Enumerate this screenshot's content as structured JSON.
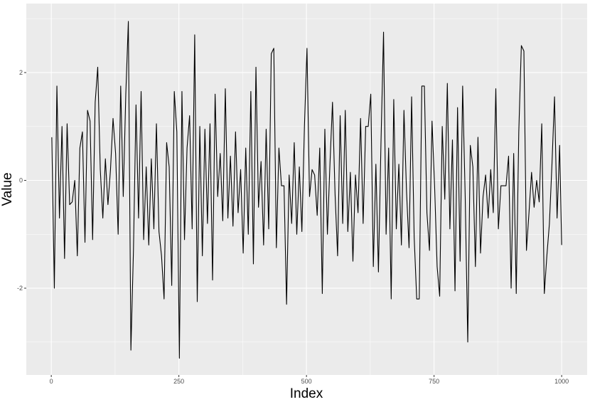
{
  "chart_data": {
    "type": "line",
    "xlabel": "Index",
    "ylabel": "Value",
    "xlim": [
      -48.95,
      1049.95
    ],
    "ylim": [
      -3.61,
      3.28
    ],
    "xticks": [
      0,
      250,
      500,
      750,
      1000
    ],
    "yticks": [
      -2,
      0,
      2
    ],
    "xminor": [
      125,
      375,
      625,
      875
    ],
    "yminor": [
      -3,
      -1,
      1,
      3
    ],
    "grid": true,
    "x": [
      1,
      6,
      11,
      16,
      21,
      26,
      31,
      36,
      41,
      46,
      51,
      56,
      61,
      66,
      71,
      76,
      81,
      86,
      91,
      96,
      101,
      106,
      111,
      116,
      121,
      126,
      131,
      136,
      141,
      146,
      151,
      156,
      161,
      166,
      171,
      176,
      181,
      186,
      191,
      196,
      201,
      206,
      211,
      216,
      221,
      226,
      231,
      236,
      241,
      246,
      251,
      256,
      261,
      266,
      271,
      276,
      281,
      286,
      291,
      296,
      301,
      306,
      311,
      316,
      321,
      326,
      331,
      336,
      341,
      346,
      351,
      356,
      361,
      366,
      371,
      376,
      381,
      386,
      391,
      396,
      401,
      406,
      411,
      416,
      421,
      426,
      431,
      436,
      441,
      446,
      451,
      456,
      461,
      466,
      471,
      476,
      481,
      486,
      491,
      496,
      501,
      506,
      511,
      516,
      521,
      526,
      531,
      536,
      541,
      546,
      551,
      556,
      561,
      566,
      571,
      576,
      581,
      586,
      591,
      596,
      601,
      606,
      611,
      616,
      621,
      626,
      631,
      636,
      641,
      646,
      651,
      656,
      661,
      666,
      671,
      676,
      681,
      686,
      691,
      696,
      701,
      706,
      711,
      716,
      721,
      726,
      731,
      736,
      741,
      746,
      751,
      756,
      761,
      766,
      771,
      776,
      781,
      786,
      791,
      796,
      801,
      806,
      811,
      816,
      821,
      826,
      831,
      836,
      841,
      846,
      851,
      856,
      861,
      866,
      871,
      876,
      881,
      886,
      891,
      896,
      901,
      906,
      911,
      916,
      921,
      926,
      931,
      936,
      941,
      946,
      951,
      956,
      961,
      966,
      971,
      976,
      981,
      986,
      991,
      996,
      1000
    ],
    "series": [
      {
        "color": "#000000",
        "values": [
          0.8,
          -2.0,
          1.75,
          -0.7,
          1.0,
          -1.45,
          1.05,
          -0.45,
          -0.4,
          0.0,
          -1.4,
          0.6,
          0.9,
          -1.15,
          1.3,
          1.1,
          -1.1,
          1.45,
          2.1,
          0.2,
          -0.7,
          0.4,
          -0.45,
          0.2,
          1.15,
          0.5,
          -1.0,
          1.75,
          -0.3,
          1.6,
          2.95,
          -3.15,
          -1.3,
          1.4,
          -0.7,
          1.65,
          -1.1,
          0.25,
          -1.2,
          0.4,
          -0.9,
          1.05,
          -0.95,
          -1.4,
          -2.2,
          0.7,
          0.25,
          -1.95,
          1.65,
          0.9,
          -3.3,
          1.65,
          -1.1,
          0.6,
          1.2,
          -0.9,
          2.7,
          -2.25,
          1.0,
          -1.4,
          0.95,
          -0.8,
          1.05,
          -1.85,
          1.6,
          -0.3,
          0.5,
          -0.75,
          1.7,
          -0.7,
          0.45,
          -0.85,
          0.9,
          -0.6,
          0.2,
          -1.35,
          0.6,
          -1.0,
          1.65,
          -1.55,
          2.1,
          -0.5,
          0.35,
          -1.2,
          0.95,
          -0.9,
          2.35,
          2.45,
          -1.25,
          0.6,
          -0.1,
          -0.1,
          -2.3,
          0.1,
          -0.8,
          0.7,
          -1.0,
          0.25,
          -0.95,
          1.0,
          2.45,
          -0.3,
          0.2,
          0.1,
          -0.65,
          0.6,
          -2.1,
          0.95,
          -1.0,
          0.3,
          1.45,
          -0.25,
          -1.4,
          1.2,
          -0.8,
          1.3,
          -0.95,
          0.15,
          -1.5,
          0.1,
          -0.6,
          1.15,
          -0.8,
          1.0,
          1.0,
          1.6,
          -1.6,
          0.3,
          -1.7,
          0.7,
          2.75,
          -1.0,
          0.6,
          -2.2,
          1.5,
          -0.9,
          0.3,
          -1.2,
          1.3,
          -0.2,
          -1.25,
          1.55,
          -1.05,
          -2.2,
          -2.2,
          1.75,
          1.75,
          -0.6,
          -1.3,
          1.1,
          -0.1,
          -1.6,
          -2.15,
          1.0,
          -0.35,
          1.8,
          -0.9,
          0.75,
          -2.05,
          1.35,
          -1.5,
          1.75,
          -0.3,
          -3.0,
          0.65,
          0.25,
          -1.6,
          0.8,
          -1.35,
          -0.3,
          0.1,
          -0.7,
          0.2,
          -0.6,
          1.7,
          -0.9,
          -0.1,
          -0.1,
          -0.1,
          0.45,
          -2.0,
          0.5,
          -2.1,
          0.9,
          2.5,
          2.4,
          -1.3,
          -0.6,
          0.15,
          -0.5,
          0.0,
          -0.4,
          1.05,
          -2.1,
          -1.4,
          -0.8,
          0.3,
          1.55,
          -0.7,
          0.65,
          -1.2
        ]
      }
    ]
  }
}
